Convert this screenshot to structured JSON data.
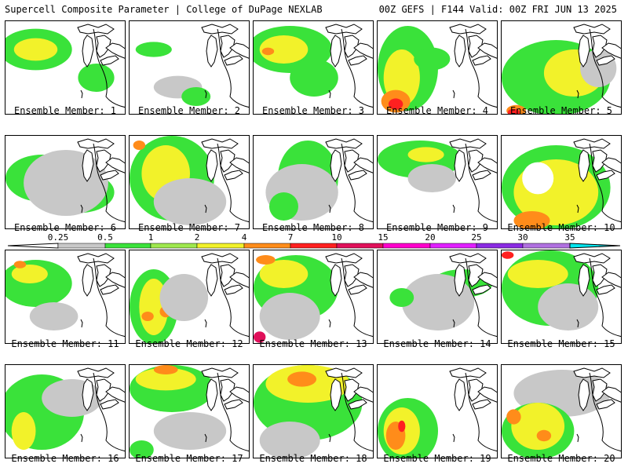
{
  "header": {
    "left": "Supercell Composite Parameter | College of DuPage NEXLAB",
    "right": "00Z GEFS | F144 Valid: 00Z FRI JUN 13 2025"
  },
  "legend": {
    "ticks": [
      "0.25",
      "0.5",
      "1",
      "2",
      "4",
      "7",
      "10",
      "15",
      "20",
      "25",
      "30",
      "35"
    ],
    "colors": [
      "#c8c8c8",
      "#3ae23a",
      "#9ee84e",
      "#f2f22a",
      "#ff8c1a",
      "#ff2020",
      "#e0105a",
      "#ff00cc",
      "#e020ff",
      "#8a2be2",
      "#b070e0",
      "#00e5ee"
    ]
  },
  "colors": {
    "gray": "#c8c8c8",
    "green": "#3ae23a",
    "lime": "#9ee84e",
    "yellow": "#f2f22a",
    "orange": "#ff8c1a",
    "red": "#ff2020",
    "magenta": "#e0105a"
  },
  "members": [
    {
      "label": "Ensemble Member: 1",
      "fields": [
        [
          "green",
          0.25,
          0.3,
          0.3,
          0.22
        ],
        [
          "yellow",
          0.25,
          0.3,
          0.18,
          0.12
        ],
        [
          "green",
          0.75,
          0.6,
          0.15,
          0.15
        ]
      ]
    },
    {
      "label": "Ensemble Member: 2",
      "fields": [
        [
          "green",
          0.2,
          0.3,
          0.15,
          0.08
        ],
        [
          "gray",
          0.4,
          0.7,
          0.2,
          0.12
        ],
        [
          "green",
          0.55,
          0.8,
          0.12,
          0.1
        ]
      ]
    },
    {
      "label": "Ensemble Member: 3",
      "fields": [
        [
          "green",
          0.3,
          0.3,
          0.35,
          0.25
        ],
        [
          "yellow",
          0.25,
          0.3,
          0.2,
          0.15
        ],
        [
          "orange",
          0.12,
          0.32,
          0.05,
          0.04
        ],
        [
          "green",
          0.5,
          0.6,
          0.2,
          0.2
        ]
      ]
    },
    {
      "label": "Ensemble Member: 4",
      "fields": [
        [
          "green",
          0.25,
          0.5,
          0.25,
          0.45
        ],
        [
          "yellow",
          0.2,
          0.6,
          0.15,
          0.3
        ],
        [
          "orange",
          0.15,
          0.85,
          0.12,
          0.12
        ],
        [
          "red",
          0.15,
          0.88,
          0.06,
          0.06
        ],
        [
          "green",
          0.45,
          0.4,
          0.15,
          0.12
        ]
      ]
    },
    {
      "label": "Ensemble Member: 5",
      "fields": [
        [
          "green",
          0.45,
          0.6,
          0.45,
          0.4
        ],
        [
          "yellow",
          0.6,
          0.55,
          0.25,
          0.25
        ],
        [
          "orange",
          0.12,
          0.95,
          0.08,
          0.06
        ],
        [
          "red",
          0.1,
          0.97,
          0.05,
          0.04
        ],
        [
          "gray",
          0.8,
          0.5,
          0.15,
          0.2
        ]
      ]
    },
    {
      "label": "Ensemble Member: 6",
      "fields": [
        [
          "green",
          0.3,
          0.45,
          0.3,
          0.25
        ],
        [
          "green",
          0.6,
          0.6,
          0.3,
          0.22
        ],
        [
          "yellow",
          0.35,
          0.6,
          0.12,
          0.1
        ],
        [
          "gray",
          0.5,
          0.5,
          0.35,
          0.35
        ]
      ]
    },
    {
      "label": "Ensemble Member: 7",
      "fields": [
        [
          "green",
          0.35,
          0.45,
          0.35,
          0.45
        ],
        [
          "yellow",
          0.3,
          0.4,
          0.2,
          0.3
        ],
        [
          "orange",
          0.08,
          0.1,
          0.05,
          0.05
        ],
        [
          "gray",
          0.5,
          0.7,
          0.3,
          0.25
        ]
      ]
    },
    {
      "label": "Ensemble Member: 8",
      "fields": [
        [
          "green",
          0.45,
          0.45,
          0.25,
          0.4
        ],
        [
          "gray",
          0.4,
          0.6,
          0.3,
          0.3
        ],
        [
          "green",
          0.25,
          0.75,
          0.12,
          0.15
        ]
      ]
    },
    {
      "label": "Ensemble Member: 9",
      "fields": [
        [
          "green",
          0.35,
          0.25,
          0.35,
          0.2
        ],
        [
          "yellow",
          0.4,
          0.2,
          0.15,
          0.08
        ],
        [
          "gray",
          0.45,
          0.45,
          0.2,
          0.15
        ]
      ]
    },
    {
      "label": "Ensemble Member: 10",
      "fields": [
        [
          "green",
          0.45,
          0.55,
          0.45,
          0.45
        ],
        [
          "yellow",
          0.45,
          0.6,
          0.35,
          0.35
        ],
        [
          "orange",
          0.25,
          0.9,
          0.15,
          0.1
        ],
        [
          "white",
          0.3,
          0.45,
          0.13,
          0.17
        ]
      ]
    },
    {
      "label": "Ensemble Member: 11",
      "fields": [
        [
          "green",
          0.25,
          0.35,
          0.3,
          0.25
        ],
        [
          "yellow",
          0.2,
          0.25,
          0.15,
          0.1
        ],
        [
          "orange",
          0.12,
          0.15,
          0.05,
          0.04
        ],
        [
          "gray",
          0.4,
          0.7,
          0.2,
          0.15
        ]
      ]
    },
    {
      "label": "Ensemble Member: 12",
      "fields": [
        [
          "green",
          0.2,
          0.6,
          0.2,
          0.4
        ],
        [
          "yellow",
          0.2,
          0.6,
          0.12,
          0.3
        ],
        [
          "orange",
          0.15,
          0.7,
          0.05,
          0.05
        ],
        [
          "orange",
          0.3,
          0.65,
          0.05,
          0.06
        ],
        [
          "gray",
          0.45,
          0.5,
          0.2,
          0.25
        ]
      ]
    },
    {
      "label": "Ensemble Member: 13",
      "fields": [
        [
          "green",
          0.35,
          0.4,
          0.35,
          0.35
        ],
        [
          "yellow",
          0.25,
          0.25,
          0.2,
          0.15
        ],
        [
          "orange",
          0.1,
          0.1,
          0.08,
          0.05
        ],
        [
          "magenta",
          0.05,
          0.92,
          0.05,
          0.06
        ],
        [
          "gray",
          0.3,
          0.7,
          0.25,
          0.25
        ]
      ]
    },
    {
      "label": "Ensemble Member: 14",
      "fields": [
        [
          "green",
          0.7,
          0.35,
          0.25,
          0.15
        ],
        [
          "gray",
          0.5,
          0.55,
          0.3,
          0.3
        ],
        [
          "green",
          0.2,
          0.5,
          0.1,
          0.1
        ]
      ]
    },
    {
      "label": "Ensemble Member: 15",
      "fields": [
        [
          "green",
          0.4,
          0.4,
          0.4,
          0.4
        ],
        [
          "yellow",
          0.3,
          0.25,
          0.25,
          0.15
        ],
        [
          "red",
          0.05,
          0.05,
          0.05,
          0.04
        ],
        [
          "gray",
          0.55,
          0.6,
          0.25,
          0.25
        ]
      ]
    },
    {
      "label": "Ensemble Member: 16",
      "fields": [
        [
          "green",
          0.3,
          0.5,
          0.35,
          0.4
        ],
        [
          "yellow",
          0.15,
          0.7,
          0.1,
          0.2
        ],
        [
          "gray",
          0.55,
          0.35,
          0.25,
          0.2
        ]
      ]
    },
    {
      "label": "Ensemble Member: 17",
      "fields": [
        [
          "green",
          0.35,
          0.25,
          0.35,
          0.25
        ],
        [
          "yellow",
          0.3,
          0.15,
          0.25,
          0.12
        ],
        [
          "orange",
          0.3,
          0.05,
          0.1,
          0.05
        ],
        [
          "gray",
          0.5,
          0.7,
          0.3,
          0.2
        ],
        [
          "green",
          0.1,
          0.9,
          0.1,
          0.1
        ]
      ]
    },
    {
      "label": "Ensemble Member: 18",
      "fields": [
        [
          "green",
          0.45,
          0.4,
          0.45,
          0.4
        ],
        [
          "yellow",
          0.45,
          0.2,
          0.35,
          0.2
        ],
        [
          "orange",
          0.4,
          0.15,
          0.12,
          0.08
        ],
        [
          "gray",
          0.3,
          0.8,
          0.25,
          0.2
        ]
      ]
    },
    {
      "label": "Ensemble Member: 19",
      "fields": [
        [
          "green",
          0.25,
          0.7,
          0.25,
          0.35
        ],
        [
          "yellow",
          0.2,
          0.7,
          0.15,
          0.25
        ],
        [
          "orange",
          0.15,
          0.75,
          0.08,
          0.15
        ],
        [
          "red",
          0.2,
          0.65,
          0.03,
          0.06
        ]
      ]
    },
    {
      "label": "Ensemble Member: 20",
      "fields": [
        [
          "gray",
          0.5,
          0.3,
          0.4,
          0.25
        ],
        [
          "green",
          0.3,
          0.7,
          0.3,
          0.3
        ],
        [
          "yellow",
          0.3,
          0.65,
          0.22,
          0.25
        ],
        [
          "orange",
          0.1,
          0.55,
          0.06,
          0.08
        ],
        [
          "orange",
          0.35,
          0.75,
          0.06,
          0.06
        ]
      ]
    }
  ]
}
